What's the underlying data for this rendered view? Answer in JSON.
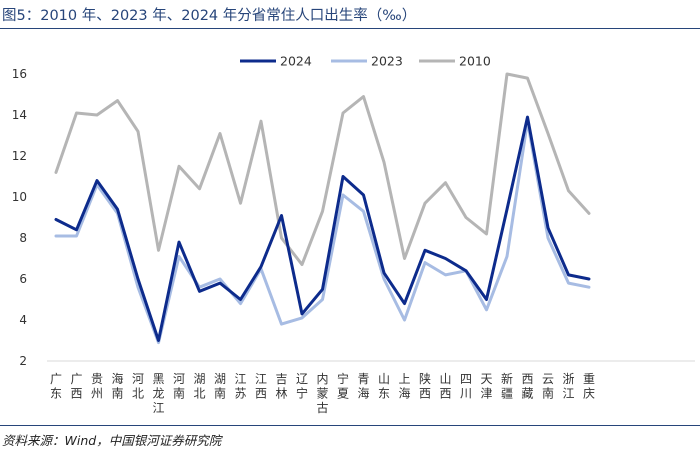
{
  "title": "图5：2010 年、2023 年、2024 年分省常住人口出生率（‰）",
  "source": "资料来源：Wind，中国银河证券研究院",
  "chart_data": {
    "type": "line",
    "title": "图5：2010 年、2023 年、2024 年分省常住人口出生率（‰）",
    "xlabel": "",
    "ylabel": "",
    "ylim": [
      2,
      16
    ],
    "yticks": [
      2,
      4,
      6,
      8,
      10,
      12,
      14,
      16
    ],
    "grid": false,
    "legend": "top-center",
    "categories": [
      "广东",
      "广西",
      "贵州",
      "海南",
      "河北",
      "黑龙江",
      "河南",
      "湖北",
      "湖南",
      "江苏",
      "江西",
      "吉林",
      "辽宁",
      "内蒙古",
      "宁夏",
      "青海",
      "山东",
      "上海",
      "陕西",
      "山西",
      "四川",
      "天津",
      "新疆",
      "西藏",
      "云南",
      "浙江",
      "重庆"
    ],
    "series": [
      {
        "name": "2024",
        "color": "#0d2b8c",
        "width": 3,
        "values": [
          8.9,
          8.4,
          10.8,
          9.4,
          6.0,
          3.0,
          7.8,
          5.4,
          5.8,
          5.0,
          6.6,
          9.1,
          4.3,
          5.5,
          11.0,
          10.1,
          6.3,
          4.8,
          7.4,
          7.0,
          6.4,
          5.0,
          9.4,
          13.9,
          8.5,
          6.2,
          6.0
        ]
      },
      {
        "name": "2023",
        "color": "#a7bce3",
        "width": 3,
        "values": [
          8.1,
          8.1,
          10.6,
          9.2,
          5.6,
          2.9,
          7.1,
          5.6,
          6.0,
          4.8,
          6.5,
          3.8,
          4.1,
          5.0,
          10.1,
          9.3,
          6.0,
          4.0,
          6.8,
          6.2,
          6.4,
          4.5,
          7.1,
          13.7,
          8.0,
          5.8,
          5.6
        ]
      },
      {
        "name": "2010",
        "color": "#b5b5b5",
        "width": 3,
        "values": [
          11.2,
          14.1,
          14.0,
          14.7,
          13.2,
          7.4,
          11.5,
          10.4,
          13.1,
          9.7,
          13.7,
          8.0,
          6.7,
          9.3,
          14.1,
          14.9,
          11.7,
          7.0,
          9.7,
          10.7,
          9.0,
          8.2,
          16.0,
          15.8,
          13.1,
          10.3,
          9.2
        ]
      }
    ]
  }
}
